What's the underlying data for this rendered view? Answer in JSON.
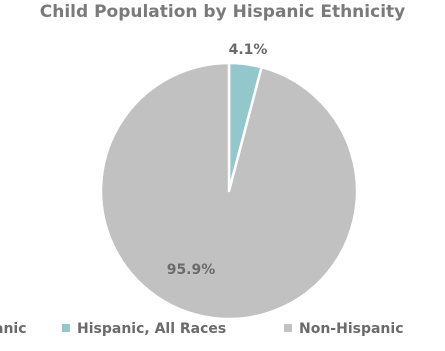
{
  "chart_data": {
    "type": "pie",
    "title": "Child Population by Hispanic Ethnicity",
    "slices": [
      {
        "name": "Hispanic, All Races",
        "value": 4.1,
        "label": "4.1%",
        "color": "#93c7cb"
      },
      {
        "name": "Non-Hispanic",
        "value": 95.9,
        "label": "95.9%",
        "color": "#c1c1c1"
      }
    ],
    "legend": {
      "placement": "bottom",
      "items": [
        "...anic",
        "Hispanic, All Races",
        "Non-Hispanic"
      ]
    }
  }
}
